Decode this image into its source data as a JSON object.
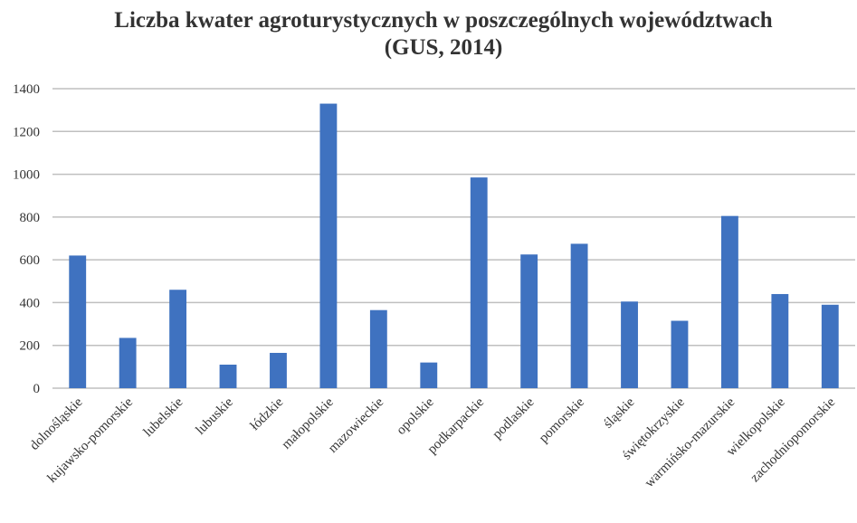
{
  "chart_data": {
    "type": "bar",
    "title": [
      "Liczba kwater agroturystycznych w poszczególnych województwach",
      "(GUS, 2014)"
    ],
    "categories": [
      "dolnośląskie",
      "kujawsko-pomorskie",
      "lubelskie",
      "lubuskie",
      "łódzkie",
      "małopolskie",
      "mazowieckie",
      "opolskie",
      "podkarpackie",
      "podlaskie",
      "pomorskie",
      "śląskie",
      "świętokrzyskie",
      "warmińsko-mazurskie",
      "wielkopolskie",
      "zachodniopomorskie"
    ],
    "values": [
      620,
      235,
      460,
      110,
      165,
      1330,
      365,
      120,
      985,
      625,
      675,
      405,
      315,
      805,
      440,
      390
    ],
    "color": "#3f72c0",
    "ylim": [
      0,
      1400
    ],
    "yticks": [
      0,
      200,
      400,
      600,
      800,
      1000,
      1200,
      1400
    ],
    "grid": true
  }
}
